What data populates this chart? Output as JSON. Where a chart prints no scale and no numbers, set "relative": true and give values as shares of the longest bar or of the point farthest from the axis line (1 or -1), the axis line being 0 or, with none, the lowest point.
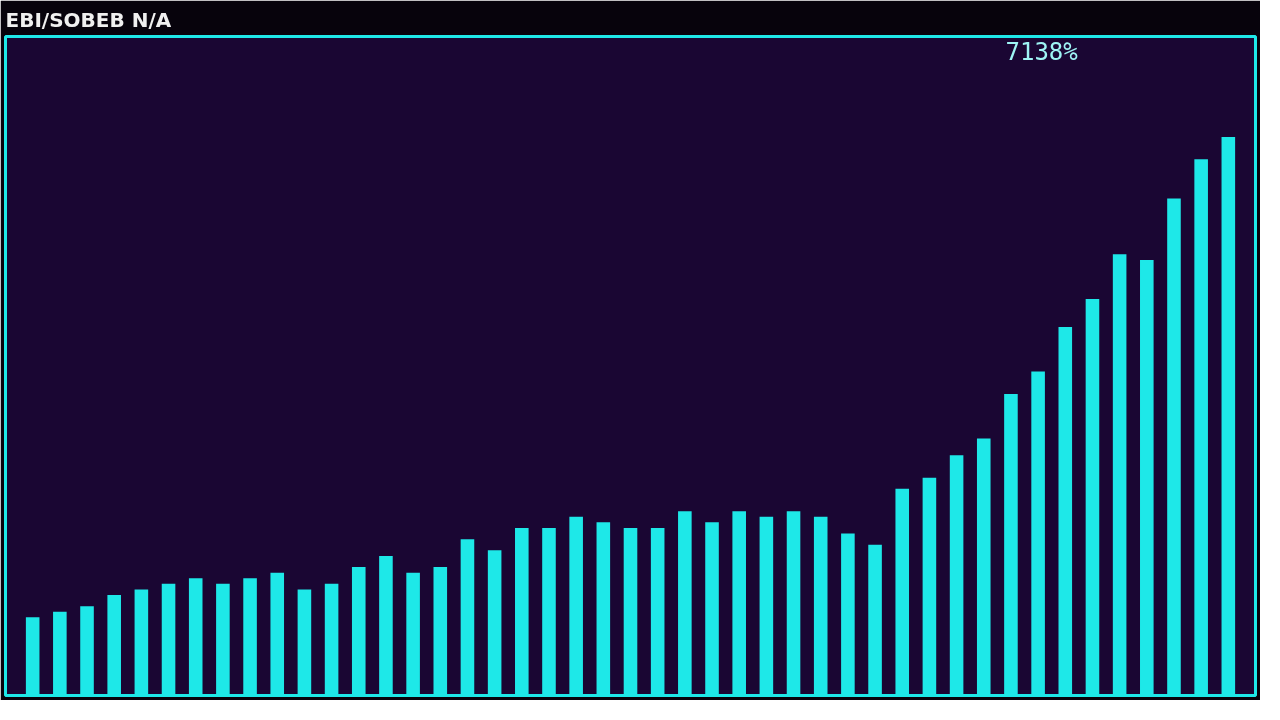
{
  "chart_data": {
    "type": "bar",
    "relative": true,
    "title": "EBI/SOBEB N/A",
    "annotations": [
      "7138%"
    ],
    "categories": [
      null,
      null,
      null,
      null,
      null,
      null,
      null,
      null,
      null,
      null,
      null,
      null,
      null,
      null,
      null,
      null,
      null,
      null,
      null,
      null,
      null,
      null,
      null,
      null,
      null,
      null,
      null,
      null,
      null,
      null,
      null,
      null,
      null,
      null,
      null,
      null,
      null,
      null,
      null,
      null,
      null,
      null,
      null,
      null,
      null
    ],
    "color": "#1ee8e8",
    "values": [
      0.14,
      0.15,
      0.16,
      0.18,
      0.19,
      0.2,
      0.21,
      0.2,
      0.21,
      0.22,
      0.19,
      0.2,
      0.23,
      0.25,
      0.22,
      0.23,
      0.28,
      0.26,
      0.3,
      0.3,
      0.32,
      0.31,
      0.3,
      0.3,
      0.33,
      0.31,
      0.33,
      0.32,
      0.33,
      0.32,
      0.29,
      0.27,
      0.37,
      0.39,
      0.43,
      0.46,
      0.54,
      0.58,
      0.66,
      0.71,
      0.79,
      0.78,
      0.89,
      0.96,
      1.0
    ]
  }
}
